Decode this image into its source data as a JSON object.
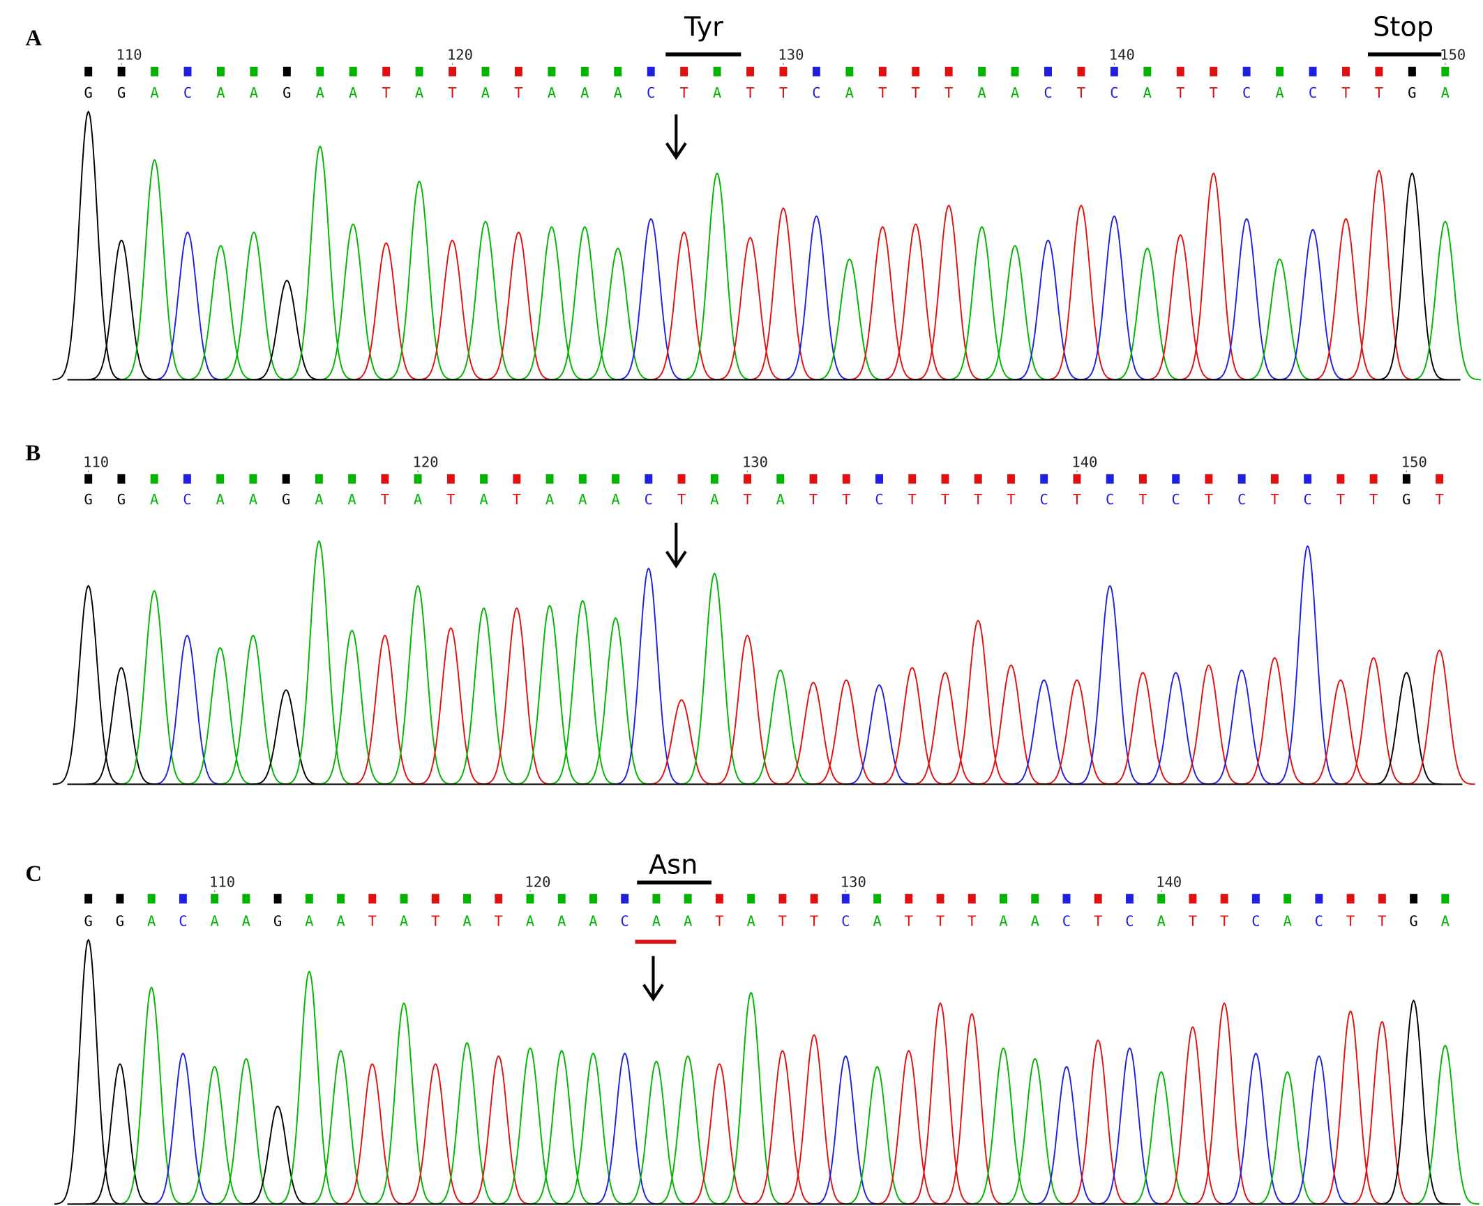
{
  "base_colors": {
    "A": "#00b400",
    "C": "#1f1fe0",
    "G": "#000000",
    "T": "#e01010"
  },
  "panels": [
    {
      "label": "A",
      "xlim": [
        109,
        150
      ],
      "ticks": [
        110,
        120,
        130,
        140,
        150
      ],
      "bases": [
        "G",
        "G",
        "A",
        "C",
        "A",
        "A",
        "G",
        "A",
        "A",
        "T",
        "A",
        "T",
        "A",
        "T",
        "A",
        "A",
        "A",
        "C",
        "T",
        "A",
        "T",
        "T",
        "C",
        "A",
        "T",
        "T",
        "T",
        "A",
        "A",
        "C",
        "T",
        "C",
        "A",
        "T",
        "T",
        "C",
        "A",
        "C",
        "T",
        "T",
        "G",
        "A"
      ],
      "peak_heights": [
        100,
        52,
        82,
        55,
        50,
        55,
        37,
        87,
        58,
        51,
        74,
        52,
        59,
        55,
        57,
        57,
        49,
        60,
        55,
        77,
        53,
        64,
        61,
        45,
        57,
        58,
        65,
        57,
        50,
        52,
        65,
        61,
        49,
        54,
        77,
        60,
        45,
        56,
        60,
        78,
        77,
        59
      ]
    },
    {
      "label": "B",
      "xlim": [
        110,
        151
      ],
      "ticks": [
        110,
        120,
        130,
        140,
        150
      ],
      "bases": [
        "G",
        "G",
        "A",
        "C",
        "A",
        "A",
        "G",
        "A",
        "A",
        "T",
        "A",
        "T",
        "A",
        "T",
        "A",
        "A",
        "A",
        "C",
        "T",
        "A",
        "T",
        "A",
        "T",
        "T",
        "C",
        "T",
        "T",
        "T",
        "T",
        "C",
        "T",
        "C",
        "T",
        "C",
        "T",
        "C",
        "T",
        "C",
        "T",
        "T",
        "G",
        "T"
      ],
      "peak_heights": [
        80,
        47,
        78,
        60,
        55,
        60,
        38,
        98,
        62,
        60,
        80,
        63,
        71,
        71,
        72,
        74,
        67,
        87,
        34,
        85,
        60,
        46,
        41,
        42,
        40,
        47,
        45,
        66,
        48,
        42,
        42,
        80,
        45,
        45,
        48,
        46,
        51,
        96,
        42,
        51,
        45,
        54
      ]
    },
    {
      "label": "C",
      "xlim": [
        106,
        149
      ],
      "ticks": [
        110,
        120,
        130,
        140
      ],
      "bases": [
        "G",
        "G",
        "A",
        "C",
        "A",
        "A",
        "G",
        "A",
        "A",
        "T",
        "A",
        "T",
        "A",
        "T",
        "A",
        "A",
        "A",
        "C",
        "A",
        "A",
        "T",
        "A",
        "T",
        "T",
        "C",
        "A",
        "T",
        "T",
        "T",
        "A",
        "A",
        "C",
        "T",
        "C",
        "A",
        "T",
        "T",
        "C",
        "A",
        "C",
        "T",
        "T",
        "G",
        "A"
      ],
      "peak_heights": [
        100,
        53,
        82,
        57,
        52,
        55,
        37,
        88,
        58,
        53,
        76,
        53,
        61,
        56,
        59,
        58,
        57,
        57,
        54,
        56,
        53,
        80,
        58,
        64,
        56,
        52,
        58,
        76,
        72,
        59,
        55,
        52,
        62,
        59,
        50,
        67,
        76,
        57,
        50,
        56,
        73,
        69,
        77,
        60
      ]
    }
  ],
  "annotations": {
    "tyr": "Tyr",
    "stop": "Stop",
    "asn": "Asn"
  }
}
